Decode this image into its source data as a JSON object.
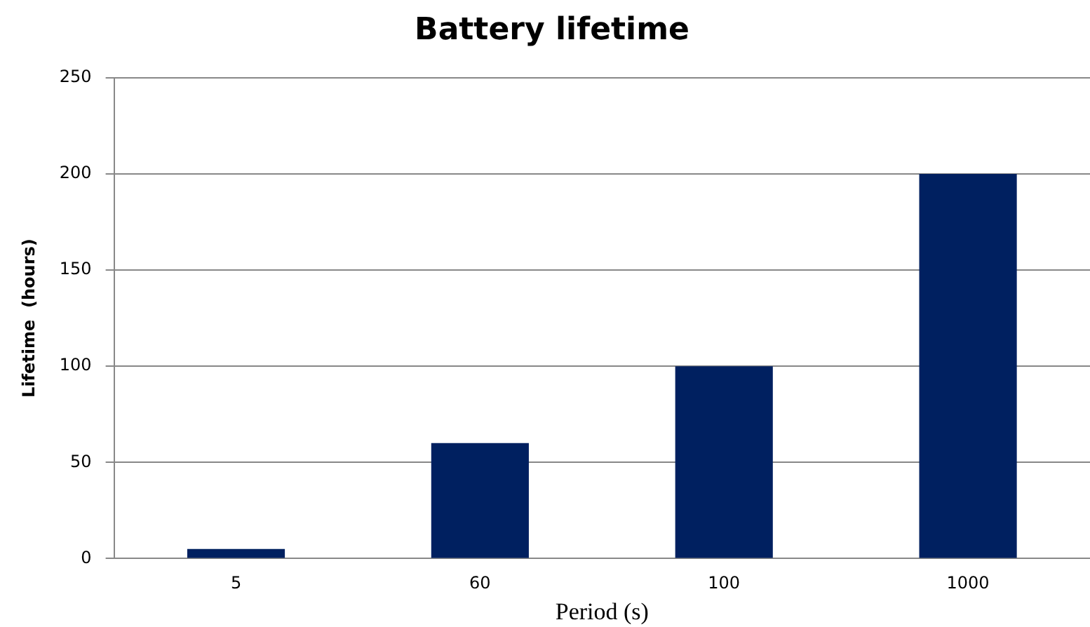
{
  "chart_data": {
    "type": "bar",
    "title": "Battery lifetime",
    "xlabel": "Period (s)",
    "ylabel": "Lifetime  (hours)",
    "categories": [
      "5",
      "60",
      "100",
      "1000"
    ],
    "values": [
      5,
      60,
      100,
      200
    ],
    "color": "#002060",
    "ylim": [
      0,
      250
    ],
    "yticks": [
      0,
      50,
      100,
      150,
      200,
      250
    ],
    "grid": "y",
    "legend": false
  }
}
